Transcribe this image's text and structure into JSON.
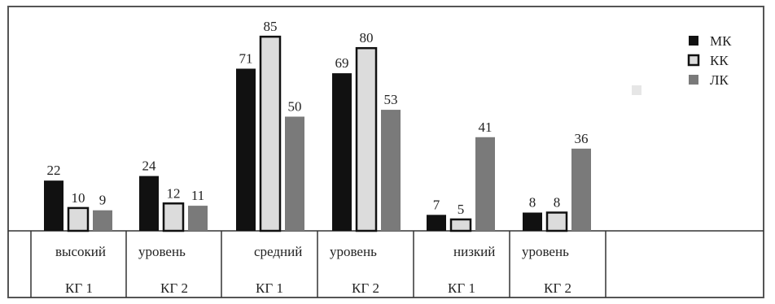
{
  "chart_data": {
    "type": "bar",
    "title": "",
    "xlabel": "",
    "ylabel": "",
    "ylim": [
      0,
      90
    ],
    "grid": false,
    "legend_placement": "top-right",
    "categories": [
      "КГ 1",
      "КГ 2",
      "КГ 1",
      "КГ 2",
      "КГ 1",
      "КГ 2"
    ],
    "category_groups": [
      "высокий",
      "уровень",
      "средний",
      "уровень",
      "низкий",
      "уровень"
    ],
    "series": [
      {
        "name": "МК",
        "values": [
          22,
          24,
          71,
          69,
          7,
          8
        ],
        "color": "#111111"
      },
      {
        "name": "КК",
        "values": [
          10,
          12,
          85,
          80,
          5,
          8
        ],
        "color": "#dcdcdc"
      },
      {
        "name": "ЛК",
        "values": [
          9,
          11,
          50,
          53,
          41,
          36
        ],
        "color": "#7a7a7a"
      }
    ]
  }
}
